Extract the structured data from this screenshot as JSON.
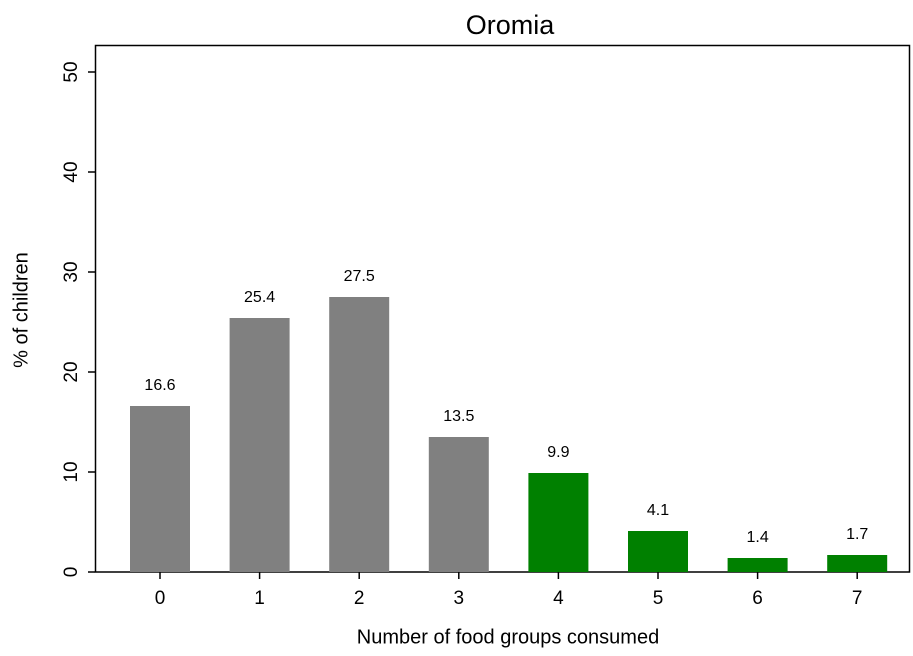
{
  "chart_data": {
    "type": "bar",
    "title": "Oromia",
    "x_label": "Number of food groups consumed",
    "y_label": "% of children",
    "categories": [
      "0",
      "1",
      "2",
      "3",
      "4",
      "5",
      "6",
      "7"
    ],
    "values": [
      16.6,
      25.4,
      27.5,
      13.5,
      9.9,
      4.1,
      1.4,
      1.7
    ],
    "colors": [
      "#808080",
      "#808080",
      "#808080",
      "#808080",
      "#008000",
      "#008000",
      "#008000",
      "#008000"
    ],
    "ylim": [
      0,
      52.7
    ],
    "yticks": [
      0,
      10,
      20,
      30,
      40,
      50
    ],
    "grid": false
  }
}
